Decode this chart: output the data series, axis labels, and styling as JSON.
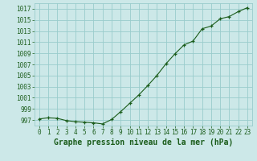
{
  "x": [
    0,
    1,
    2,
    3,
    4,
    5,
    6,
    7,
    8,
    9,
    10,
    11,
    12,
    13,
    14,
    15,
    16,
    17,
    18,
    19,
    20,
    21,
    22,
    23
  ],
  "y": [
    997.2,
    997.4,
    997.3,
    996.9,
    996.7,
    996.6,
    996.5,
    996.3,
    997.1,
    998.5,
    1000.0,
    1001.5,
    1003.2,
    1005.0,
    1007.1,
    1008.9,
    1010.5,
    1011.2,
    1013.4,
    1013.9,
    1015.2,
    1015.6,
    1016.5,
    1017.2
  ],
  "xlabel": "Graphe pression niveau de la mer (hPa)",
  "ylim": [
    996.0,
    1018.0
  ],
  "yticks": [
    997,
    999,
    1001,
    1003,
    1005,
    1007,
    1009,
    1011,
    1013,
    1015,
    1017
  ],
  "xticks": [
    0,
    1,
    2,
    3,
    4,
    5,
    6,
    7,
    8,
    9,
    10,
    11,
    12,
    13,
    14,
    15,
    16,
    17,
    18,
    19,
    20,
    21,
    22,
    23
  ],
  "line_color": "#1a5c1a",
  "marker_color": "#1a5c1a",
  "bg_color": "#cce8e8",
  "grid_color": "#99cccc",
  "xlabel_fontsize": 7,
  "tick_fontsize": 5.5,
  "xlabel_color": "#1a5c1a",
  "tick_color": "#1a5c1a"
}
